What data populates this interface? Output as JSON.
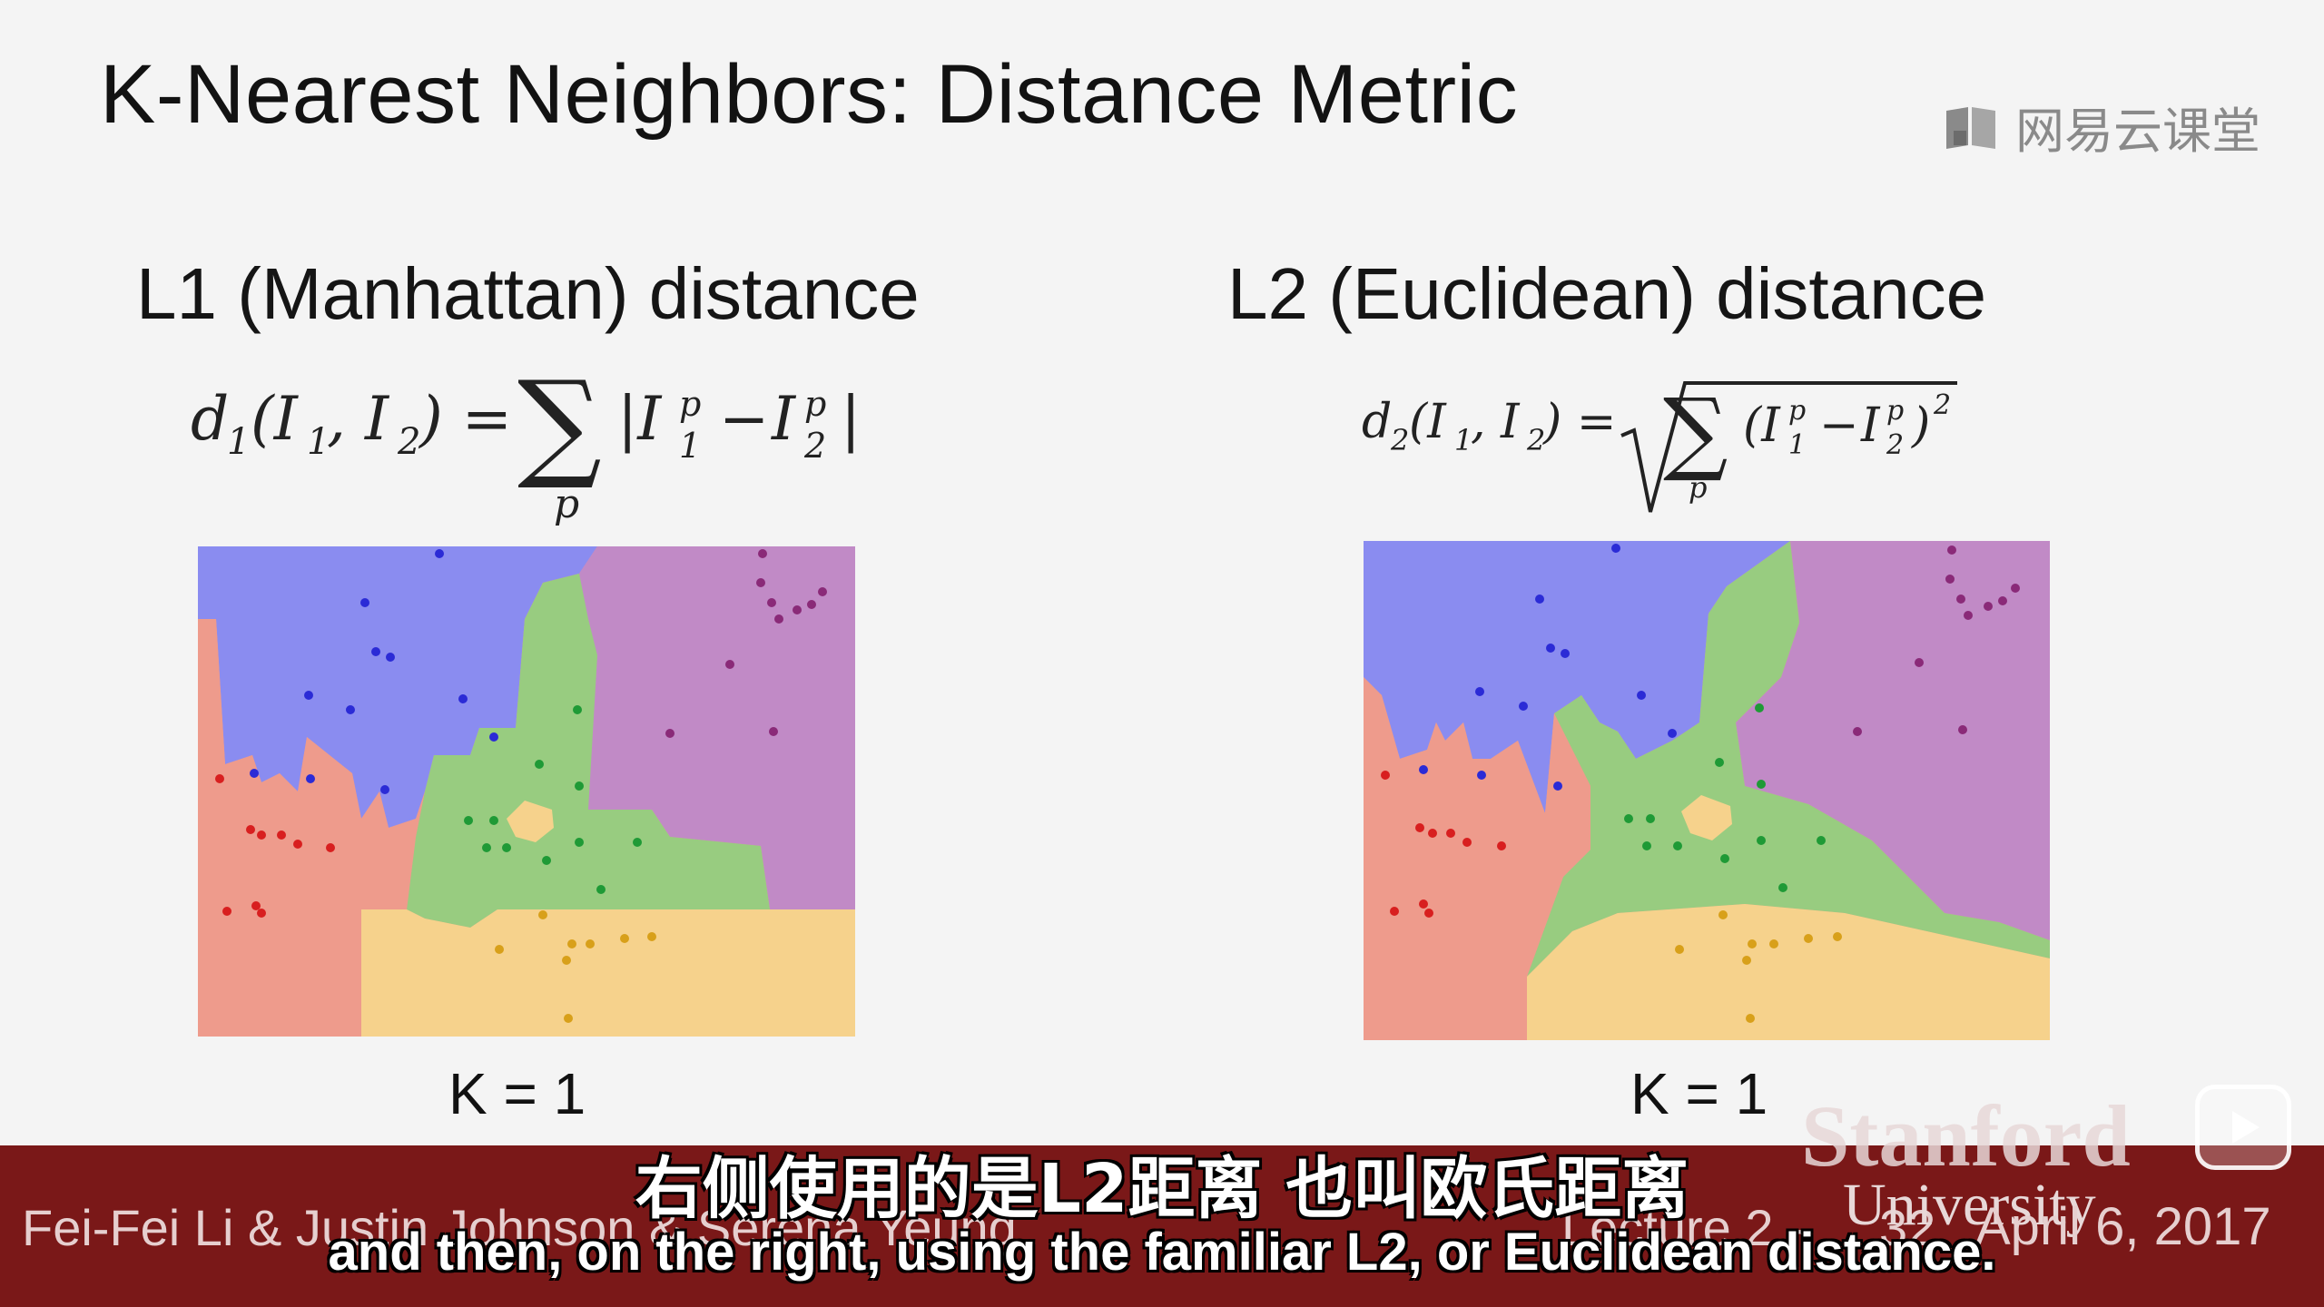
{
  "slide": {
    "title": "K-Nearest Neighbors: Distance Metric",
    "left": {
      "heading": "L1 (Manhattan) distance",
      "k_label": "K = 1"
    },
    "right": {
      "heading": "L2 (Euclidean) distance",
      "k_label": "K = 1"
    }
  },
  "watermark": {
    "text": "网易云课堂",
    "icon": "book-icon"
  },
  "footer": {
    "authors": "Fei-Fei Li & Justin Johnson & Serena Yeung",
    "lecture": "Lecture 2 -",
    "page": "32",
    "date": "April 6, 2017",
    "logo_line1": "Stanford",
    "logo_line2": "University"
  },
  "subtitles": {
    "chinese": "右侧使用的是L2距离  也叫欧氏距离",
    "english": "and then, on the right, using the familiar L2, or Euclidean distance."
  },
  "colors": {
    "blue_region": "#8a8cf0",
    "purple_region": "#c18ac6",
    "green_region": "#98cc80",
    "red_region": "#ee9b8c",
    "orange_region": "#f6d28c",
    "footer_bar": "#7a1818"
  }
}
